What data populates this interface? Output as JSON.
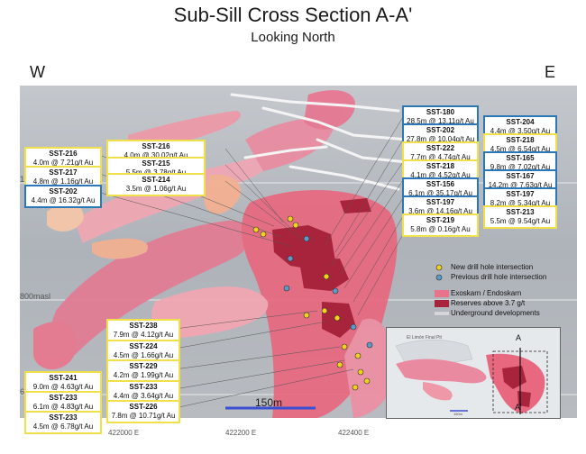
{
  "title": "Sub-Sill Cross Section A-A'",
  "subtitle": "Looking North",
  "directions": {
    "west": "W",
    "east": "E"
  },
  "elevation_labels": {
    "top": "1",
    "mid": "800masl",
    "bottom": "6"
  },
  "easting_labels": [
    "422000 E",
    "422200 E",
    "422400 E"
  ],
  "scale_bar": "150m",
  "legend": {
    "new_hole": "New drill hole intersection",
    "previous_hole": "Previous drill hole intersection",
    "skarn": "Exoskarn / Endoskarn",
    "reserves": "Reserves above 3.7 g/t",
    "underground": "Underground developments"
  },
  "colors": {
    "new_border": "#f0e04a",
    "previous_border": "#2a78b8",
    "skarn": "#e8748c",
    "reserves": "#a8243c",
    "ore_light": "#f4b090"
  },
  "inset": {
    "pit_label": "El Limón Final Pit",
    "section_top": "A",
    "section_bottom": "A'",
    "scale": "150m"
  },
  "labels_left": [
    {
      "hole": "SST-216",
      "line": "4.0m @ 7.21g/t Au",
      "type": "new"
    },
    {
      "hole": "SST-217",
      "line": "4.8m @ 1.16g/t Au",
      "type": "new"
    },
    {
      "hole": "SST-202",
      "line": "4.4m @ 16.32g/t Au",
      "type": "previous"
    }
  ],
  "labels_center_top": [
    {
      "hole": "SST-216",
      "line": "4.0m @ 30.02g/t Au",
      "type": "new"
    },
    {
      "hole": "SST-215",
      "line": "5.5m @ 3.78g/t Au",
      "type": "new"
    },
    {
      "hole": "SST-214",
      "line": "3.5m @ 1.06g/t Au",
      "type": "new"
    }
  ],
  "labels_right_inner": [
    {
      "hole": "SST-180",
      "line": "28.5m @ 13.11g/t Au",
      "type": "previous"
    },
    {
      "hole": "SST-202",
      "line": "27.8m @ 10.04g/t Au",
      "type": "previous"
    },
    {
      "hole": "SST-222",
      "line": "7.7m @ 4.74g/t Au",
      "type": "new"
    },
    {
      "hole": "SST-218",
      "line": "4.1m @ 4.52g/t Au",
      "type": "new"
    },
    {
      "hole": "SST-156",
      "line": "6.1m @ 35.17g/t Au",
      "type": "previous"
    },
    {
      "hole": "SST-197",
      "line": "3.6m @ 14.16g/t Au",
      "type": "previous"
    },
    {
      "hole": "SST-219",
      "line": "5.8m @ 0.16g/t Au",
      "type": "new"
    }
  ],
  "labels_right_outer": [
    {
      "hole": "SST-204",
      "line": "4.4m @ 3.50g/t Au",
      "type": "previous"
    },
    {
      "hole": "SST-218",
      "line": "4.5m @ 6.54g/t Au",
      "type": "new"
    },
    {
      "hole": "SST-165",
      "line": "9.8m @ 7.02g/t Au",
      "type": "previous"
    },
    {
      "hole": "SST-167",
      "line": "14.2m @ 7.63g/t Au",
      "type": "previous"
    },
    {
      "hole": "SST-197",
      "line": "8.2m @ 5.34g/t Au",
      "type": "previous"
    },
    {
      "hole": "SST-213",
      "line": "5.5m @ 9.54g/t Au",
      "type": "new"
    }
  ],
  "labels_center_bottom": [
    {
      "hole": "SST-238",
      "line": "7.9m @ 4.12g/t Au",
      "type": "new"
    },
    {
      "hole": "SST-224",
      "line": "4.5m @ 1.66g/t Au",
      "type": "new"
    },
    {
      "hole": "SST-229",
      "line": "4.2m @ 1.99g/t Au",
      "type": "new"
    },
    {
      "hole": "SST-233",
      "line": "4.4m @ 3.64g/t Au",
      "type": "new"
    },
    {
      "hole": "SST-226",
      "line": "7.8m @ 10.71g/t Au",
      "type": "new"
    }
  ],
  "labels_left_bottom": [
    {
      "hole": "SST-241",
      "line": "9.0m @ 4.63g/t Au",
      "type": "new"
    },
    {
      "hole": "SST-233",
      "line": "6.1m @ 4.83g/t Au",
      "type": "new"
    },
    {
      "hole": "SST-233",
      "line": "4.5m @ 6.78g/t Au",
      "type": "new"
    }
  ]
}
